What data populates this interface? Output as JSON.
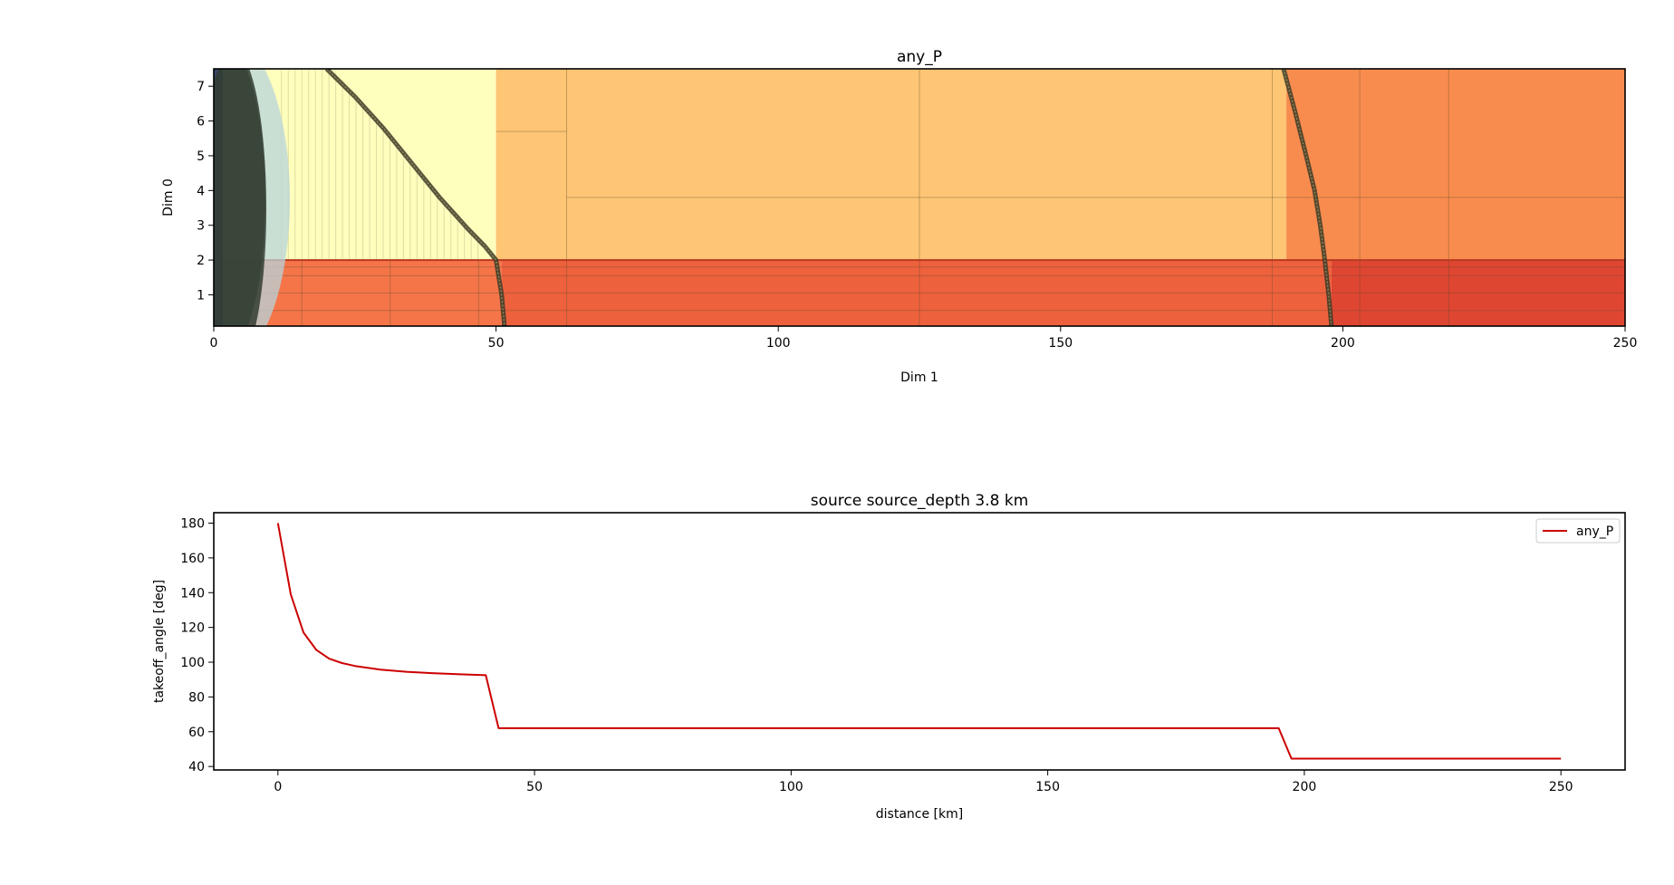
{
  "chart_data": [
    {
      "type": "heatmap",
      "title": "any_P",
      "xlabel": "Dim 1",
      "ylabel": "Dim 0",
      "xlim": [
        0,
        250
      ],
      "ylim": [
        0.1,
        7.5
      ],
      "xticks": [
        0,
        50,
        100,
        150,
        200,
        250
      ],
      "yticks": [
        1,
        2,
        3,
        4,
        5,
        6,
        7
      ],
      "xtick_labels": [
        "0",
        "50",
        "100",
        "150",
        "200",
        "250"
      ],
      "ytick_labels": [
        "1",
        "2",
        "3",
        "4",
        "5",
        "6",
        "7"
      ],
      "grid": false,
      "legend": "none",
      "layer_boundary_dim0": 2.0,
      "regions": [
        {
          "x": [
            0,
            50
          ],
          "y": [
            2.0,
            7.5
          ],
          "color": "#fefebd"
        },
        {
          "x": [
            50,
            190
          ],
          "y": [
            2.0,
            7.5
          ],
          "color": "#fdc574"
        },
        {
          "x": [
            190,
            250
          ],
          "y": [
            2.0,
            7.5
          ],
          "color": "#f88c4e"
        },
        {
          "x": [
            0,
            51
          ],
          "y": [
            0.1,
            2.0
          ],
          "color": "#f57548"
        },
        {
          "x": [
            51,
            198
          ],
          "y": [
            0.1,
            2.0
          ],
          "color": "#ee613d"
        },
        {
          "x": [
            198,
            250
          ],
          "y": [
            0.1,
            2.0
          ],
          "color": "#df4632"
        }
      ],
      "front_lines": [
        {
          "x": [
            20,
            25,
            30,
            35,
            40,
            45,
            48,
            50,
            51,
            51.5
          ],
          "y": [
            7.5,
            6.7,
            5.8,
            4.8,
            3.8,
            2.9,
            2.4,
            2.0,
            1.0,
            0.1
          ]
        },
        {
          "x": [
            189.5,
            191.5,
            193.5,
            195,
            196,
            196.8,
            197.5,
            198
          ],
          "y": [
            7.5,
            6.3,
            5.0,
            4.0,
            3.0,
            2.0,
            1.0,
            0.1
          ]
        }
      ]
    },
    {
      "type": "line",
      "title": "source source_depth 3.8 km",
      "xlabel": "distance [km]",
      "ylabel": "takeoff_angle [deg]",
      "xlim": [
        -12.5,
        262.5
      ],
      "ylim": [
        38,
        186
      ],
      "xticks": [
        0,
        50,
        100,
        150,
        200,
        250
      ],
      "yticks": [
        40,
        60,
        80,
        100,
        120,
        140,
        160,
        180
      ],
      "xtick_labels": [
        "0",
        "50",
        "100",
        "150",
        "200",
        "250"
      ],
      "ytick_labels": [
        "40",
        "60",
        "80",
        "100",
        "120",
        "140",
        "160",
        "180"
      ],
      "grid": false,
      "legend": "top-right",
      "series": [
        {
          "name": "any_P",
          "color": "#cc0000",
          "x": [
            0,
            2.5,
            5,
            7.5,
            10,
            12.5,
            15,
            20,
            25,
            30,
            35,
            40.5,
            43,
            100,
            150,
            195,
            197.5,
            250
          ],
          "y": [
            180,
            139,
            117,
            107,
            102,
            99.5,
            97.8,
            95.7,
            94.5,
            93.7,
            93.1,
            92.5,
            62,
            62,
            62,
            62,
            44.5,
            44.5
          ]
        }
      ]
    }
  ]
}
